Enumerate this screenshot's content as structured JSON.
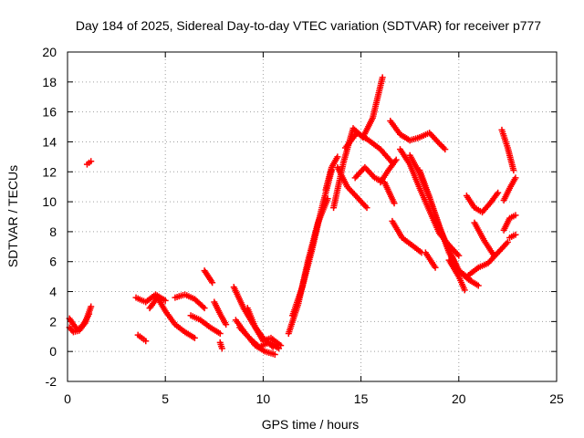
{
  "chart_data": {
    "type": "scatter",
    "title": "Day 184 of 2025, Sidereal Day-to-day VTEC variation (SDTVAR) for receiver p777",
    "xlabel": "GPS time / hours",
    "ylabel": "SDTVAR / TECUs",
    "xlim": [
      0,
      25
    ],
    "ylim": [
      -2,
      20
    ],
    "xticks": [
      "0",
      "5",
      "10",
      "15",
      "20",
      "25"
    ],
    "yticks": [
      "-2",
      "0",
      "2",
      "4",
      "6",
      "8",
      "10",
      "12",
      "14",
      "16",
      "18",
      "20"
    ],
    "grid": true,
    "marker": "+",
    "color": "#ff0000",
    "tracks": [
      {
        "x": [
          0.1,
          0.3,
          0.5,
          0.7,
          0.9,
          1.1
        ],
        "y": [
          2.2,
          1.8,
          1.5,
          1.6,
          2.0,
          2.5
        ]
      },
      {
        "x": [
          0.1,
          0.3,
          0.6,
          0.9,
          1.2
        ],
        "y": [
          1.6,
          1.3,
          1.4,
          1.9,
          3.0
        ]
      },
      {
        "x": [
          1.0,
          1.2
        ],
        "y": [
          12.5,
          12.7
        ]
      },
      {
        "x": [
          3.6,
          3.8,
          4.0
        ],
        "y": [
          1.1,
          0.9,
          0.7
        ]
      },
      {
        "x": [
          3.5,
          4.0,
          4.5,
          5.0
        ],
        "y": [
          3.6,
          3.3,
          3.8,
          3.4
        ]
      },
      {
        "x": [
          4.2,
          4.6,
          5.0,
          5.5,
          6.0,
          6.5
        ],
        "y": [
          2.9,
          3.6,
          2.7,
          1.8,
          1.3,
          0.9
        ]
      },
      {
        "x": [
          5.5,
          6.0,
          6.5,
          7.0
        ],
        "y": [
          3.6,
          3.8,
          3.5,
          2.9
        ]
      },
      {
        "x": [
          6.3,
          6.8,
          7.3,
          7.8
        ],
        "y": [
          2.4,
          2.1,
          1.6,
          1.2
        ]
      },
      {
        "x": [
          7.0,
          7.2,
          7.4
        ],
        "y": [
          5.4,
          5.0,
          4.6
        ]
      },
      {
        "x": [
          7.5,
          7.8,
          8.1
        ],
        "y": [
          3.3,
          2.5,
          1.8
        ]
      },
      {
        "x": [
          7.8,
          7.9
        ],
        "y": [
          0.6,
          0.2
        ]
      },
      {
        "x": [
          8.5,
          9.0,
          9.5,
          10.0,
          10.5
        ],
        "y": [
          4.3,
          2.9,
          1.8,
          0.9,
          0.3
        ]
      },
      {
        "x": [
          8.6,
          9.1,
          9.6,
          10.1,
          10.6
        ],
        "y": [
          2.1,
          1.2,
          0.4,
          0.0,
          -0.2
        ]
      },
      {
        "x": [
          8.8,
          9.3,
          9.8,
          10.3,
          10.8
        ],
        "y": [
          1.6,
          0.9,
          0.3,
          0.6,
          0.2
        ]
      },
      {
        "x": [
          9.2,
          9.6,
          10.0,
          10.4,
          10.9
        ],
        "y": [
          2.9,
          1.6,
          0.7,
          0.9,
          0.4
        ]
      },
      {
        "x": [
          11.3,
          11.8,
          12.3,
          12.8,
          13.3
        ],
        "y": [
          1.2,
          3.2,
          6.1,
          8.6,
          10.2
        ]
      },
      {
        "x": [
          11.5,
          12.0,
          12.5,
          13.0,
          13.5
        ],
        "y": [
          2.4,
          4.3,
          6.8,
          9.6,
          12.1
        ]
      },
      {
        "x": [
          13.2,
          13.5,
          13.8
        ],
        "y": [
          10.8,
          12.3,
          13.0
        ]
      },
      {
        "x": [
          13.6,
          14.1,
          14.6,
          15.1,
          15.6,
          16.1
        ],
        "y": [
          9.6,
          12.6,
          14.9,
          14.3,
          15.6,
          18.3
        ]
      },
      {
        "x": [
          13.8,
          14.3,
          14.8,
          15.3
        ],
        "y": [
          12.3,
          11.0,
          10.3,
          9.6
        ]
      },
      {
        "x": [
          14.2,
          14.8,
          15.4,
          16.0,
          16.6
        ],
        "y": [
          13.6,
          14.6,
          14.1,
          13.5,
          12.6
        ]
      },
      {
        "x": [
          14.7,
          15.2,
          15.7,
          16.2,
          16.7
        ],
        "y": [
          11.6,
          12.3,
          11.6,
          11.3,
          9.9
        ]
      },
      {
        "x": [
          16.0,
          16.4,
          16.8
        ],
        "y": [
          11.3,
          12.1,
          12.8
        ]
      },
      {
        "x": [
          16.5,
          17.0,
          17.5,
          18.0,
          18.5,
          19.0,
          19.3
        ],
        "y": [
          15.4,
          14.5,
          14.1,
          14.3,
          14.6,
          13.9,
          13.5
        ]
      },
      {
        "x": [
          16.6,
          17.1,
          17.6,
          18.1
        ],
        "y": [
          8.7,
          7.6,
          7.1,
          6.6
        ]
      },
      {
        "x": [
          17.0,
          17.5,
          18.0,
          18.5,
          19.0,
          19.5,
          20.0
        ],
        "y": [
          13.5,
          12.5,
          10.9,
          9.4,
          7.9,
          7.1,
          6.4
        ]
      },
      {
        "x": [
          17.5,
          18.0,
          18.5,
          19.0,
          19.5,
          20.0,
          20.5
        ],
        "y": [
          13.1,
          11.9,
          10.3,
          8.4,
          6.6,
          5.4,
          4.9
        ]
      },
      {
        "x": [
          18.0,
          18.5,
          19.0,
          19.5,
          20.0,
          20.5,
          21.0
        ],
        "y": [
          12.1,
          10.3,
          8.3,
          6.8,
          5.4,
          4.8,
          4.4
        ]
      },
      {
        "x": [
          18.3,
          18.8
        ],
        "y": [
          6.6,
          5.6
        ]
      },
      {
        "x": [
          19.5,
          20.0,
          20.3
        ],
        "y": [
          6.1,
          5.0,
          4.1
        ]
      },
      {
        "x": [
          20.5,
          21.0,
          21.5,
          22.0,
          22.5
        ],
        "y": [
          5.1,
          5.6,
          5.9,
          6.6,
          7.3
        ]
      },
      {
        "x": [
          20.4,
          20.8,
          21.2,
          21.6,
          22.0
        ],
        "y": [
          10.4,
          9.6,
          9.3,
          9.9,
          10.6
        ]
      },
      {
        "x": [
          20.8,
          21.3,
          21.8
        ],
        "y": [
          8.6,
          7.4,
          6.4
        ]
      },
      {
        "x": [
          22.2,
          22.5,
          22.8
        ],
        "y": [
          14.8,
          13.6,
          12.1
        ]
      },
      {
        "x": [
          22.3,
          22.6,
          22.9
        ],
        "y": [
          8.1,
          8.9,
          9.1
        ]
      },
      {
        "x": [
          22.6,
          22.9
        ],
        "y": [
          7.6,
          7.8
        ]
      },
      {
        "x": [
          22.3,
          22.6,
          22.9
        ],
        "y": [
          10.1,
          10.9,
          11.6
        ]
      }
    ]
  }
}
